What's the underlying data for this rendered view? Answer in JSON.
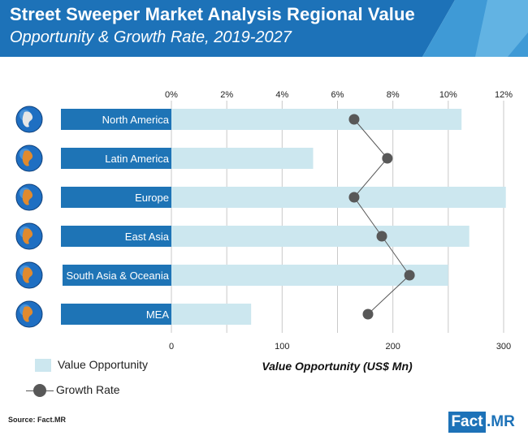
{
  "header": {
    "title": "Street Sweeper Market Analysis Regional Value",
    "subtitle": "Opportunity & Growth Rate, 2019-2027"
  },
  "chart_data": {
    "type": "bar",
    "orientation": "horizontal",
    "categories": [
      "North America",
      "Latin America",
      "Europe",
      "East Asia",
      "South Asia & Oceania",
      "MEA"
    ],
    "series": [
      {
        "name": "Value Opportunity",
        "values": [
          262,
          128,
          302,
          269,
          250,
          72
        ]
      },
      {
        "name": "Growth Rate",
        "values": [
          6.6,
          7.8,
          6.6,
          7.6,
          8.6,
          7.1
        ]
      }
    ],
    "xlabel": "Value Opportunity (US$ Mn)",
    "x_ticks": [
      "0",
      "100",
      "200",
      "300"
    ],
    "x_range": [
      0,
      300
    ],
    "top_ticks": [
      "0%",
      "2%",
      "4%",
      "6%",
      "8%",
      "10%",
      "12%"
    ],
    "top_range": [
      0,
      12
    ],
    "legend_position": "bottom-left",
    "colors": {
      "bar": "#cce7ef",
      "label_bar": "#1e74b6",
      "marker": "#585858",
      "grid": "#c9c9c9"
    }
  },
  "legend": {
    "bar_label": "Value Opportunity",
    "marker_label": "Growth Rate"
  },
  "source": "Source: Fact.MR",
  "logo": {
    "box": "Fact",
    "rest": ".MR"
  },
  "icons": [
    "globe-icon"
  ]
}
